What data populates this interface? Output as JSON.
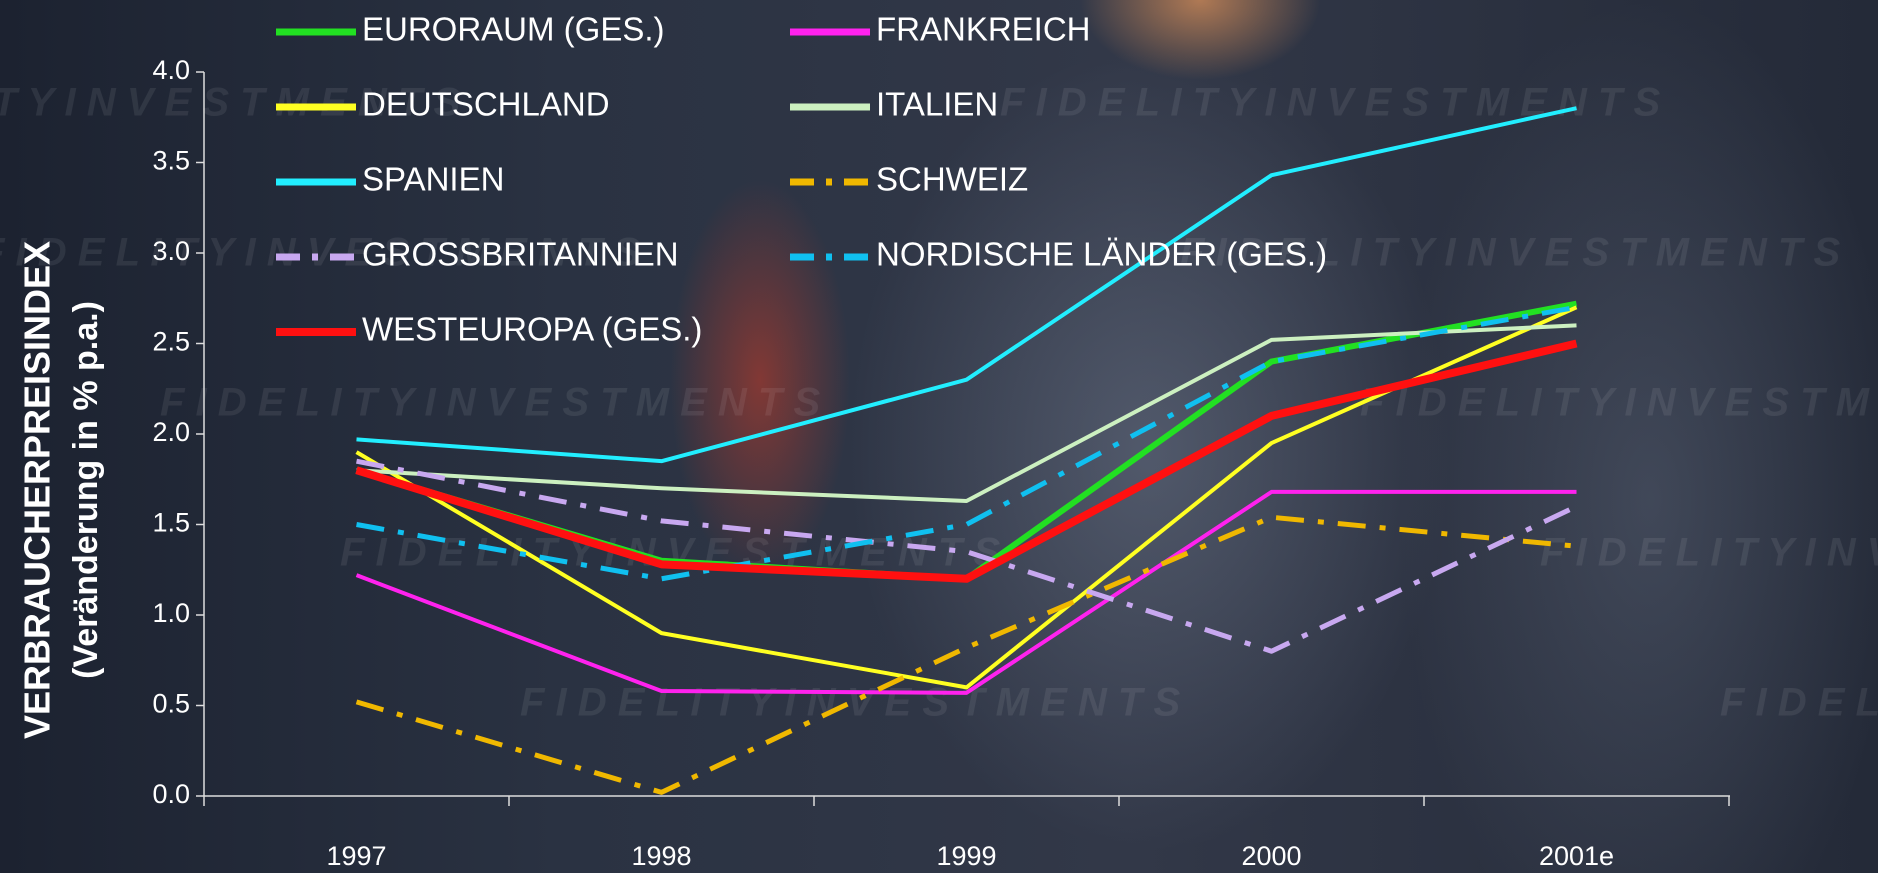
{
  "chart_data": {
    "type": "line",
    "y_label": [
      "VERBRAUCHERPREISINDEX",
      "(Veränderung in % p.a.)"
    ],
    "watermark": "F I D E L I T Y   I N V E S T M E N T S",
    "categories": [
      "1997",
      "1998",
      "1999",
      "2000",
      "2001e"
    ],
    "ylim": [
      0,
      4
    ],
    "yticks": [
      {
        "value": 0,
        "label": "0.0"
      },
      0.5,
      {
        "value": 1,
        "label": "1.0"
      },
      1.5,
      {
        "value": 2,
        "label": "2.0"
      },
      2.5,
      {
        "value": 3,
        "label": "3.0"
      },
      3.5,
      {
        "value": 4,
        "label": "4.0"
      }
    ],
    "series": [
      {
        "name": "EURORAUM (GES.)",
        "color": "#22e022",
        "linestyle": "solid",
        "linewidth": 6,
        "values": [
          1.8,
          1.3,
          1.2,
          2.4,
          2.72
        ]
      },
      {
        "name": "FRANKREICH",
        "color": "#ff22ee",
        "linestyle": "solid",
        "linewidth": 4,
        "values": [
          1.22,
          0.58,
          0.57,
          1.68,
          1.68
        ]
      },
      {
        "name": "DEUTSCHLAND",
        "color": "#ffff22",
        "linestyle": "solid",
        "linewidth": 4,
        "values": [
          1.9,
          0.9,
          0.6,
          1.95,
          2.7
        ]
      },
      {
        "name": "ITALIEN",
        "color": "#ccf0c0",
        "linestyle": "solid",
        "linewidth": 4,
        "values": [
          1.8,
          1.7,
          1.63,
          2.52,
          2.6
        ]
      },
      {
        "name": "SPANIEN",
        "color": "#22eeff",
        "linestyle": "solid",
        "linewidth": 4,
        "values": [
          1.97,
          1.85,
          2.3,
          3.43,
          3.8
        ]
      },
      {
        "name": "SCHWEIZ",
        "color": "#f0b800",
        "linestyle": "dashdot",
        "linewidth": 5,
        "values": [
          0.52,
          0.02,
          0.82,
          1.54,
          1.38
        ]
      },
      {
        "name": "GROSSBRITANNIEN",
        "color": "#c8a8f0",
        "linestyle": "dashdot",
        "linewidth": 5,
        "values": [
          1.85,
          1.52,
          1.35,
          0.8,
          1.6
        ]
      },
      {
        "name": "NORDISCHE LÄNDER (GES.)",
        "color": "#10c0f0",
        "linestyle": "dashdot",
        "linewidth": 5,
        "values": [
          1.5,
          1.2,
          1.5,
          2.4,
          2.7
        ]
      },
      {
        "name": "WESTEUROPA (GES.)",
        "color": "#ff1010",
        "linestyle": "solid",
        "linewidth": 8,
        "values": [
          1.8,
          1.28,
          1.2,
          2.1,
          2.5
        ]
      }
    ]
  }
}
